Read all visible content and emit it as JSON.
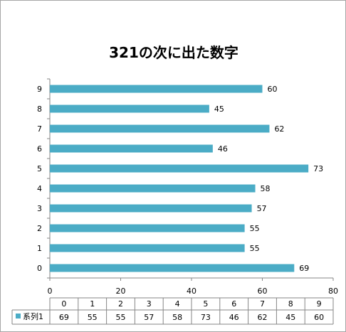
{
  "chart_data": {
    "type": "bar",
    "orientation": "horizontal",
    "title": "321の次に出た数字",
    "categories": [
      "0",
      "1",
      "2",
      "3",
      "4",
      "5",
      "6",
      "7",
      "8",
      "9"
    ],
    "series": [
      {
        "name": "系列1",
        "values": [
          69,
          55,
          55,
          57,
          58,
          73,
          46,
          62,
          45,
          60
        ],
        "color": "#4bacc6"
      }
    ],
    "xlim": [
      0,
      80
    ],
    "xticks": [
      0,
      20,
      40,
      60,
      80
    ],
    "grid": false,
    "data_labels": true,
    "data_table": true
  }
}
